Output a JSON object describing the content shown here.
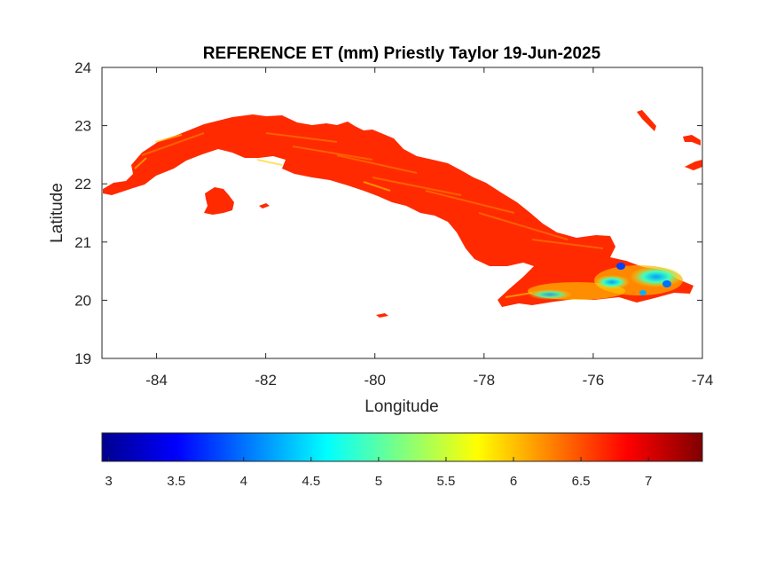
{
  "chart_data": {
    "type": "heatmap",
    "title": "REFERENCE ET (mm) Priestly Taylor 19-Jun-2025",
    "xlabel": "Longitude",
    "ylabel": "Latitude",
    "xlim": [
      -85,
      -74
    ],
    "ylim": [
      19,
      24
    ],
    "x_ticks": [
      -84,
      -82,
      -80,
      -78,
      -76,
      -74
    ],
    "y_ticks": [
      19,
      20,
      21,
      22,
      23,
      24
    ],
    "colormap": "jet",
    "colorbar": {
      "orientation": "horizontal",
      "placement": "bottom",
      "range": [
        2.95,
        7.4
      ],
      "ticks": [
        3,
        3.5,
        4,
        4.5,
        5,
        5.5,
        6,
        6.5,
        7
      ]
    },
    "description_values": {
      "dominant_value": 6.9,
      "eastern_low_region_min": 3.5
    },
    "grid": false
  },
  "colors": {
    "background": "#ffffff",
    "axis": "#262626",
    "ocean": "#ffffff",
    "dominant_fill": "#ff2a00"
  }
}
